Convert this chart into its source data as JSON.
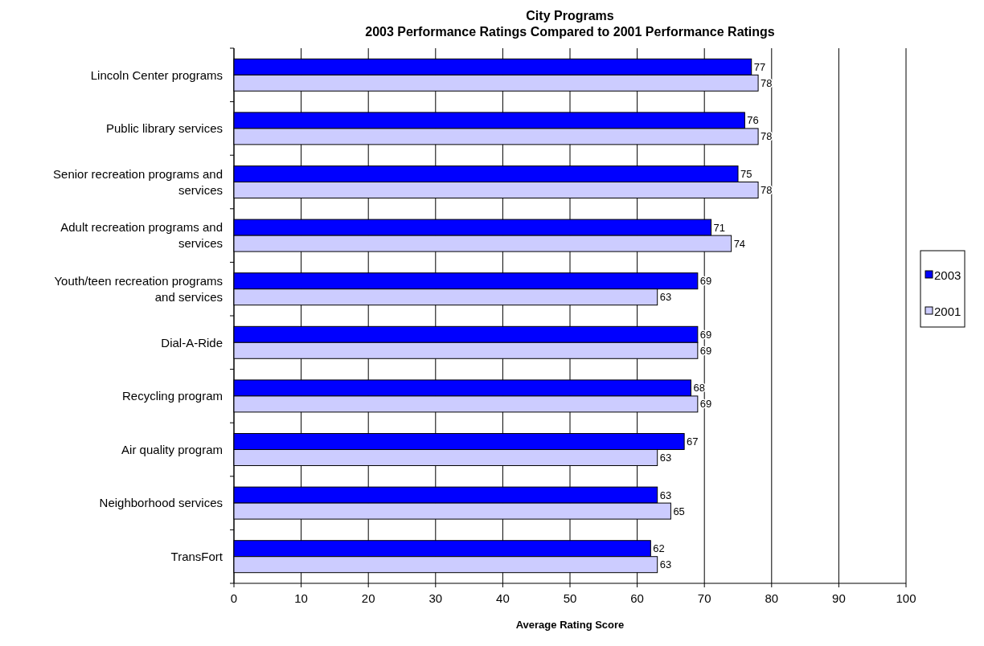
{
  "chart_data": {
    "type": "bar",
    "orientation": "horizontal",
    "title": "City Programs",
    "subtitle": "2003 Performance Ratings Compared to 2001 Performance Ratings",
    "xlabel": "Average Rating Score",
    "categories": [
      "Lincoln Center programs",
      "Public library services",
      "Senior recreation programs and services",
      "Adult recreation programs and services",
      "Youth/teen recreation programs and services",
      "Dial-A-Ride",
      "Recycling program",
      "Air quality program",
      "Neighborhood services",
      "TransFort"
    ],
    "series": [
      {
        "name": "2003",
        "color": "#0000ff",
        "values": [
          77,
          76,
          75,
          71,
          69,
          69,
          68,
          67,
          63,
          62
        ]
      },
      {
        "name": "2001",
        "color": "#ccccff",
        "values": [
          78,
          78,
          78,
          74,
          63,
          69,
          69,
          63,
          65,
          63
        ]
      }
    ],
    "xlim": [
      0,
      100
    ],
    "xticks": [
      0,
      10,
      20,
      30,
      40,
      50,
      60,
      70,
      80,
      90,
      100
    ],
    "grid": "x",
    "legend": "right",
    "data_labels": true
  }
}
